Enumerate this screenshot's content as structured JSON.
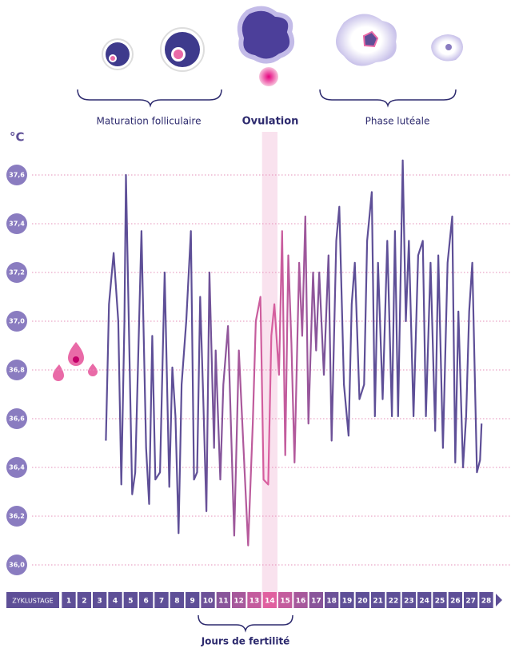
{
  "chart_data": {
    "type": "line",
    "y_label": "°C",
    "phases": [
      "Maturation folliculaire",
      "Ovulation",
      "Phase lutéale"
    ],
    "fertile_label": "Jours de fertilité",
    "x_label": "ZYKLUSTAGE",
    "xlim": [
      1,
      28
    ],
    "xticks": [
      1,
      2,
      3,
      4,
      5,
      6,
      7,
      8,
      9,
      10,
      11,
      12,
      13,
      14,
      15,
      16,
      17,
      18,
      19,
      20,
      21,
      22,
      23,
      24,
      25,
      26,
      27,
      28
    ],
    "highlight": 14,
    "ylim": [
      36.0,
      37.6
    ],
    "yticks": [
      {
        "value": 36.0,
        "label": "36,0"
      },
      {
        "value": 36.2,
        "label": "36,2"
      },
      {
        "value": 36.4,
        "label": "36,4"
      },
      {
        "value": 36.6,
        "label": "36,6"
      },
      {
        "value": 36.8,
        "label": "36,8"
      },
      {
        "value": 37.0,
        "label": "37,0"
      },
      {
        "value": 37.2,
        "label": "37,2"
      },
      {
        "value": 37.4,
        "label": "37,4"
      },
      {
        "value": 37.6,
        "label": "37,6"
      }
    ],
    "grid": true,
    "color": "#5e4f97",
    "highlight_color": "#e0609f",
    "x": [
      3.4,
      3.6,
      3.9,
      4.2,
      4.4,
      4.6,
      4.7,
      4.9,
      5.1,
      5.3,
      5.7,
      6.0,
      6.2,
      6.4,
      6.6,
      6.9,
      7.2,
      7.5,
      7.7,
      7.9,
      8.1,
      8.3,
      8.6,
      8.9,
      9.1,
      9.3,
      9.5,
      9.7,
      9.9,
      10.1,
      10.4,
      10.5,
      10.8,
      11.0,
      11.3,
      11.7,
      12.0,
      12.3,
      12.6,
      12.9,
      13.1,
      13.4,
      13.6,
      13.9,
      14.1,
      14.3,
      14.6,
      14.8,
      15.0,
      15.2,
      15.4,
      15.6,
      15.9,
      16.1,
      16.3,
      16.5,
      16.8,
      17.0,
      17.2,
      17.5,
      17.8,
      18.0,
      18.3,
      18.5,
      18.8,
      19.1,
      19.3,
      19.5,
      19.8,
      20.1,
      20.3,
      20.6,
      20.8,
      21.0,
      21.3,
      21.6,
      21.9,
      22.1,
      22.3,
      22.6,
      22.8,
      23.0,
      23.3,
      23.6,
      23.9,
      24.1,
      24.4,
      24.7,
      24.9,
      25.2,
      25.5,
      25.8,
      26.0,
      26.2,
      26.5,
      26.7,
      26.9,
      27.1,
      27.4,
      27.6,
      27.7
    ],
    "series": [
      {
        "values": [
          36.51,
          37.07,
          37.28,
          37.0,
          36.33,
          37.0,
          37.6,
          36.94,
          36.29,
          36.38,
          37.37,
          36.48,
          36.25,
          36.94,
          36.35,
          36.38,
          37.2,
          36.32,
          36.81,
          36.61,
          36.13,
          36.74,
          37.0,
          37.37,
          36.35,
          36.38,
          37.1,
          36.68,
          36.22,
          37.2,
          36.48,
          36.88,
          36.35,
          36.74,
          36.98,
          36.12,
          36.88,
          36.48,
          36.08,
          36.58,
          37.0,
          37.1,
          36.35,
          36.33,
          36.94,
          37.07,
          36.78,
          37.37,
          36.45,
          37.27,
          36.91,
          36.42,
          37.24,
          36.94,
          37.43,
          36.58,
          37.2,
          36.88,
          37.2,
          36.78,
          37.27,
          36.51,
          37.33,
          37.47,
          36.74,
          36.53,
          37.07,
          37.24,
          36.68,
          36.74,
          37.33,
          37.53,
          36.61,
          37.24,
          36.68,
          37.33,
          36.61,
          37.37,
          36.61,
          37.66,
          37.0,
          37.33,
          36.61,
          37.27,
          37.33,
          36.61,
          37.24,
          36.55,
          37.27,
          36.48,
          37.24,
          37.43,
          36.42,
          37.04,
          36.4,
          36.61,
          37.04,
          37.24,
          36.38,
          36.43,
          36.58
        ]
      }
    ]
  }
}
